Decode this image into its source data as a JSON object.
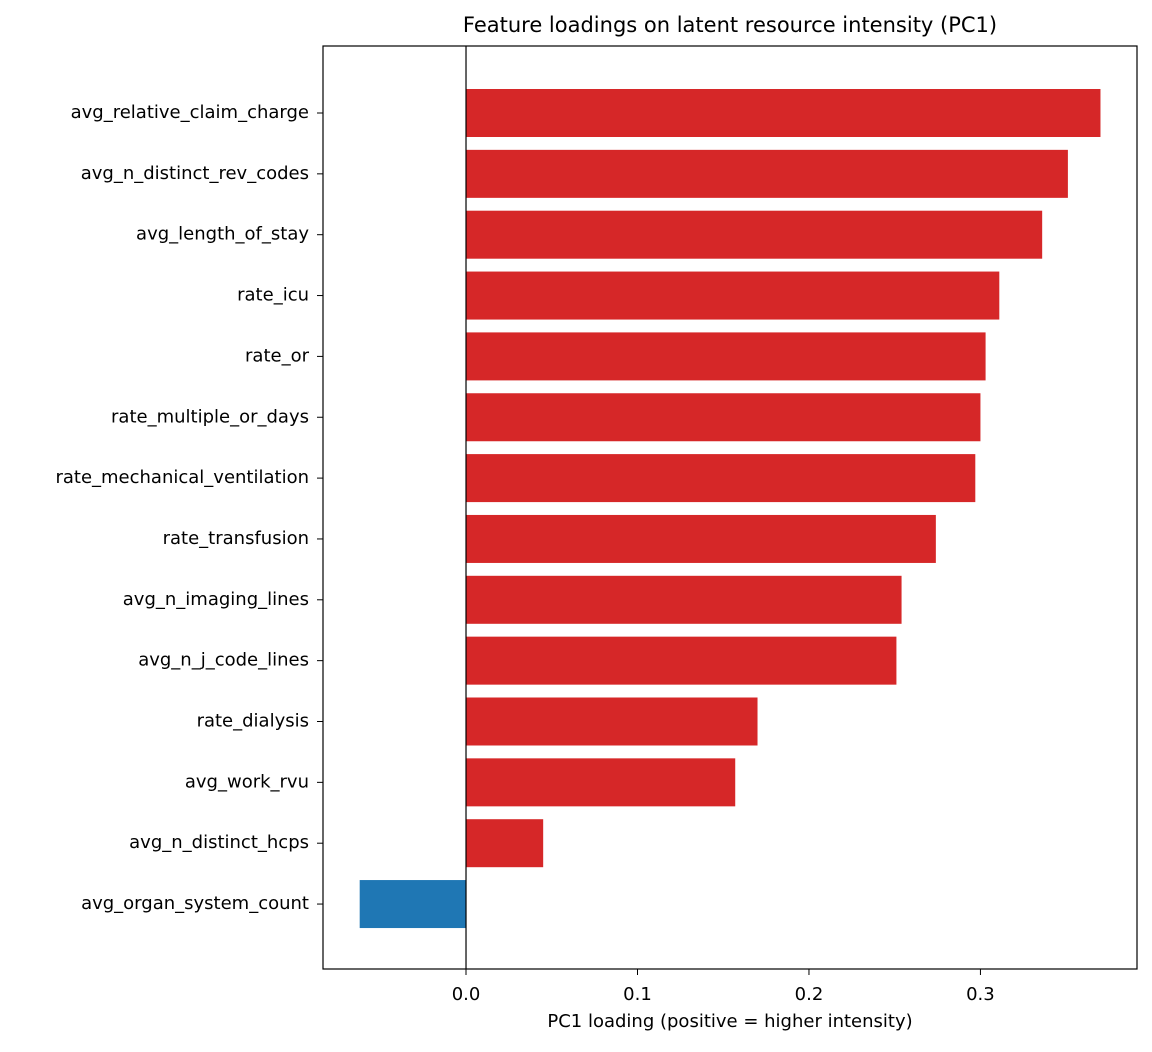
{
  "chart_data": {
    "type": "barh",
    "title": "Feature loadings on latent resource intensity (PC1)",
    "xlabel": "PC1 loading (positive = higher intensity)",
    "categories": [
      "avg_relative_claim_charge",
      "avg_n_distinct_rev_codes",
      "avg_length_of_stay",
      "rate_icu",
      "rate_or",
      "rate_multiple_or_days",
      "rate_mechanical_ventilation",
      "rate_transfusion",
      "avg_n_imaging_lines",
      "avg_n_j_code_lines",
      "rate_dialysis",
      "avg_work_rvu",
      "avg_n_distinct_hcps",
      "avg_organ_system_count"
    ],
    "values": [
      0.37,
      0.351,
      0.336,
      0.311,
      0.303,
      0.3,
      0.297,
      0.274,
      0.254,
      0.251,
      0.17,
      0.157,
      0.045,
      -0.062
    ],
    "colors": [
      "#d62728",
      "#d62728",
      "#d62728",
      "#d62728",
      "#d62728",
      "#d62728",
      "#d62728",
      "#d62728",
      "#d62728",
      "#d62728",
      "#d62728",
      "#d62728",
      "#d62728",
      "#1f77b4"
    ],
    "xlim": [
      -0.0834,
      0.3913
    ],
    "xticks": [
      {
        "value": 0,
        "label": "0.0"
      },
      0.1,
      0.2,
      0.3
    ],
    "grid": false
  }
}
